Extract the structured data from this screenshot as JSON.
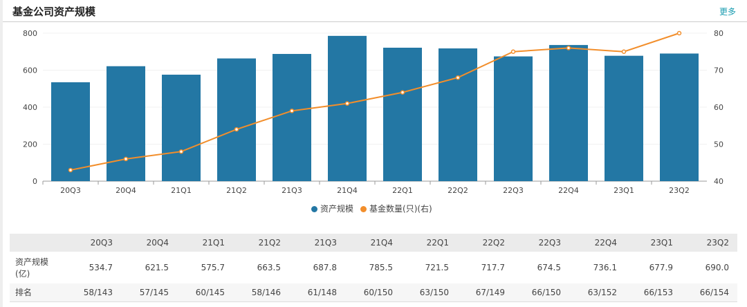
{
  "header": {
    "title": "基金公司资产规模",
    "more_label": "更多"
  },
  "colors": {
    "bar": "#2377a4",
    "line": "#f28e2b",
    "more": "#1a9cb0"
  },
  "chart_data": {
    "type": "bar+line",
    "categories": [
      "20Q3",
      "20Q4",
      "21Q1",
      "21Q2",
      "21Q3",
      "21Q4",
      "22Q1",
      "22Q2",
      "22Q3",
      "22Q4",
      "23Q1",
      "23Q2"
    ],
    "series": [
      {
        "name": "资产规模",
        "type": "bar",
        "axis": "left",
        "values": [
          534.7,
          621.5,
          575.7,
          663.5,
          687.8,
          785.5,
          721.5,
          717.7,
          674.5,
          736.1,
          677.9,
          690.0
        ]
      },
      {
        "name": "基金数量(只)(右)",
        "type": "line",
        "axis": "right",
        "values": [
          43,
          46,
          48,
          54,
          59,
          61,
          64,
          68,
          75,
          76,
          75,
          80
        ]
      }
    ],
    "y_left": {
      "range": [
        0,
        800
      ],
      "ticks": [
        "0",
        "200",
        "400",
        "600",
        "800"
      ]
    },
    "y_right": {
      "range": [
        40,
        80
      ],
      "ticks": [
        "40",
        "50",
        "60",
        "70",
        "80"
      ]
    },
    "grid": true,
    "legend": "bottom"
  },
  "table": {
    "headers": [
      "",
      "20Q3",
      "20Q4",
      "21Q1",
      "21Q2",
      "21Q3",
      "21Q4",
      "22Q1",
      "22Q2",
      "22Q3",
      "22Q4",
      "23Q1",
      "23Q2"
    ],
    "rows": [
      {
        "label": "资产规模(亿)",
        "cells": [
          "534.7",
          "621.5",
          "575.7",
          "663.5",
          "687.8",
          "785.5",
          "721.5",
          "717.7",
          "674.5",
          "736.1",
          "677.9",
          "690.0"
        ]
      },
      {
        "label": "排名",
        "cells": [
          "58/143",
          "57/145",
          "60/145",
          "58/146",
          "61/148",
          "60/150",
          "63/150",
          "67/149",
          "66/150",
          "63/152",
          "66/153",
          "66/154"
        ]
      }
    ]
  }
}
